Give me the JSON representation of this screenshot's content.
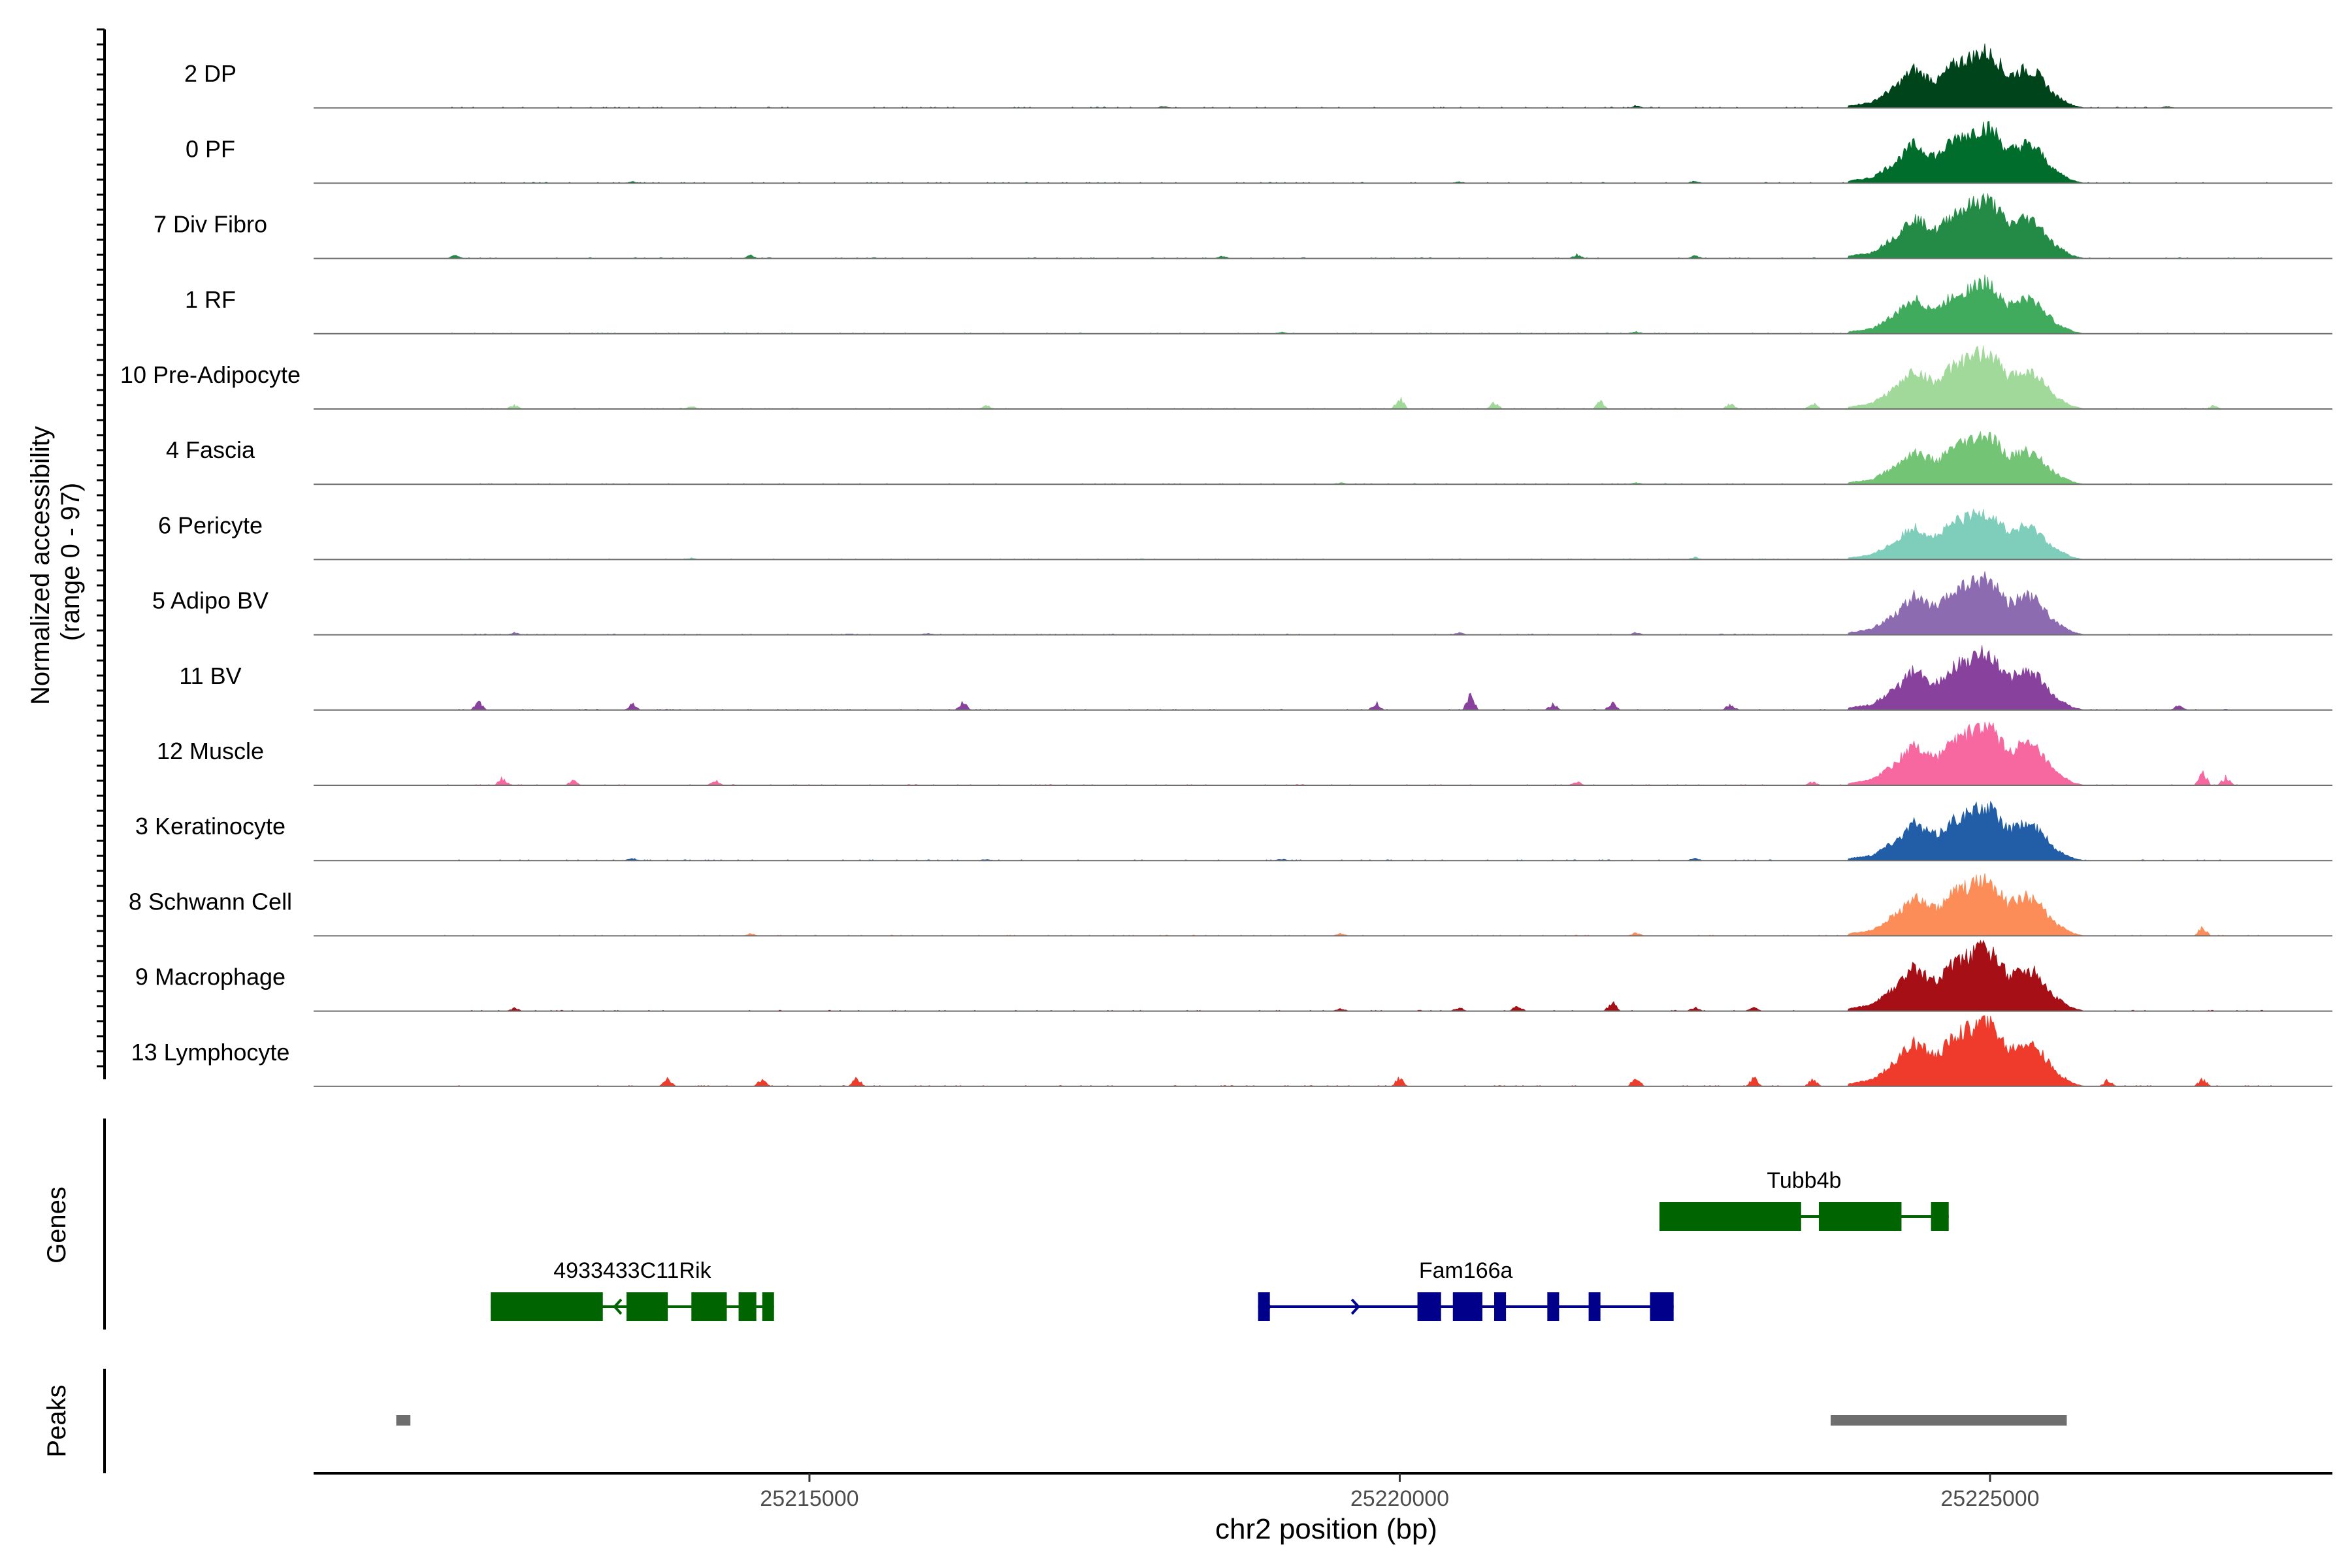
{
  "chart_data": {
    "type": "area",
    "title": "",
    "region": {
      "chrom": "chr2",
      "start": 25210800,
      "end": 25227900
    },
    "track_axis_label": [
      "Normalized accessibility",
      "(range 0 - 97)"
    ],
    "genes_axis_label": "Genes",
    "peaks_axis_label": "Peaks",
    "xlabel": "chr2 position (bp)",
    "xticks": [
      25215000,
      25220000,
      25225000
    ],
    "xtick_labels": [
      "25215000",
      "25220000",
      "25225000"
    ],
    "ylim": [
      0,
      97
    ],
    "tracks": [
      {
        "name": "2 DP",
        "color": "#00441b",
        "peak_scale": 1.0,
        "noise": [
          [
            25211600,
            0.03
          ],
          [
            25218000,
            0.02
          ],
          [
            25222000,
            0.03
          ],
          [
            25226500,
            0.02
          ]
        ]
      },
      {
        "name": "0 PF",
        "color": "#006d2c",
        "peak_scale": 1.0,
        "noise": [
          [
            25211700,
            0.03
          ],
          [
            25213500,
            0.02
          ],
          [
            25220500,
            0.02
          ],
          [
            25222500,
            0.03
          ]
        ]
      },
      {
        "name": "7 Div Fibro",
        "color": "#238b45",
        "peak_scale": 1.05,
        "noise": [
          [
            25212000,
            0.04
          ],
          [
            25214500,
            0.04
          ],
          [
            25218500,
            0.03
          ],
          [
            25221500,
            0.05
          ],
          [
            25222500,
            0.04
          ]
        ]
      },
      {
        "name": "1 RF",
        "color": "#41ab5d",
        "peak_scale": 0.9,
        "noise": [
          [
            25211700,
            0.03
          ],
          [
            25219000,
            0.02
          ],
          [
            25222000,
            0.03
          ]
        ]
      },
      {
        "name": "10 Pre-Adipocyte",
        "color": "#a1d99b",
        "peak_scale": 1.0,
        "noise": [
          [
            25212500,
            0.05
          ],
          [
            25214000,
            0.04
          ],
          [
            25216500,
            0.05
          ],
          [
            25220000,
            0.15
          ],
          [
            25220800,
            0.1
          ],
          [
            25221700,
            0.1
          ],
          [
            25222800,
            0.08
          ],
          [
            25223500,
            0.08
          ],
          [
            25226900,
            0.05
          ]
        ]
      },
      {
        "name": "4 Fascia",
        "color": "#74c476",
        "peak_scale": 0.85,
        "noise": [
          [
            25211600,
            0.02
          ],
          [
            25219500,
            0.02
          ],
          [
            25222000,
            0.02
          ]
        ]
      },
      {
        "name": "6 Pericyte",
        "color": "#7fcdbb",
        "peak_scale": 0.85,
        "noise": [
          [
            25211600,
            0.08
          ],
          [
            25214000,
            0.02
          ],
          [
            25222500,
            0.03
          ]
        ]
      },
      {
        "name": "5 Adipo BV",
        "color": "#8c6bb1",
        "peak_scale": 1.0,
        "noise": [
          [
            25212500,
            0.03
          ],
          [
            25216000,
            0.02
          ],
          [
            25220500,
            0.03
          ],
          [
            25222000,
            0.03
          ]
        ]
      },
      {
        "name": "11 BV",
        "color": "#88419d",
        "peak_scale": 1.0,
        "noise": [
          [
            25212200,
            0.12
          ],
          [
            25213500,
            0.08
          ],
          [
            25216300,
            0.1
          ],
          [
            25219800,
            0.1
          ],
          [
            25220600,
            0.2
          ],
          [
            25221300,
            0.08
          ],
          [
            25221800,
            0.1
          ],
          [
            25222800,
            0.08
          ],
          [
            25226600,
            0.08
          ]
        ]
      },
      {
        "name": "12 Muscle",
        "color": "#f768a1",
        "peak_scale": 1.05,
        "noise": [
          [
            25212400,
            0.1
          ],
          [
            25213000,
            0.07
          ],
          [
            25214200,
            0.07
          ],
          [
            25221500,
            0.05
          ],
          [
            25223500,
            0.05
          ],
          [
            25226800,
            0.18
          ],
          [
            25227000,
            0.12
          ]
        ]
      },
      {
        "name": "3 Keratinocyte",
        "color": "#225ea8",
        "peak_scale": 0.95,
        "noise": [
          [
            25213500,
            0.03
          ],
          [
            25216500,
            0.02
          ],
          [
            25219000,
            0.02
          ],
          [
            25222500,
            0.03
          ]
        ]
      },
      {
        "name": "8 Schwann Cell",
        "color": "#fc8d59",
        "peak_scale": 1.0,
        "noise": [
          [
            25211700,
            0.04
          ],
          [
            25214500,
            0.03
          ],
          [
            25219500,
            0.03
          ],
          [
            25222000,
            0.04
          ],
          [
            25226800,
            0.12
          ]
        ]
      },
      {
        "name": "9 Macrophage",
        "color": "#a50f15",
        "peak_scale": 1.1,
        "noise": [
          [
            25211600,
            0.06
          ],
          [
            25212500,
            0.04
          ],
          [
            25219500,
            0.04
          ],
          [
            25220500,
            0.05
          ],
          [
            25221000,
            0.08
          ],
          [
            25221800,
            0.12
          ],
          [
            25222500,
            0.05
          ],
          [
            25223000,
            0.05
          ]
        ]
      },
      {
        "name": "13 Lymphocyte",
        "color": "#ef3b2c",
        "peak_scale": 1.15,
        "noise": [
          [
            25213800,
            0.1
          ],
          [
            25214600,
            0.1
          ],
          [
            25215400,
            0.12
          ],
          [
            25220000,
            0.12
          ],
          [
            25222000,
            0.12
          ],
          [
            25223000,
            0.12
          ],
          [
            25223500,
            0.1
          ],
          [
            25226000,
            0.1
          ],
          [
            25226800,
            0.1
          ]
        ]
      }
    ],
    "peak_profile": [
      [
        25223800,
        0.03
      ],
      [
        25224000,
        0.08
      ],
      [
        25224200,
        0.3
      ],
      [
        25224350,
        0.55
      ],
      [
        25224450,
        0.45
      ],
      [
        25224550,
        0.38
      ],
      [
        25224700,
        0.62
      ],
      [
        25224850,
        0.72
      ],
      [
        25224950,
        0.8
      ],
      [
        25225050,
        0.7
      ],
      [
        25225150,
        0.45
      ],
      [
        25225300,
        0.55
      ],
      [
        25225400,
        0.48
      ],
      [
        25225550,
        0.18
      ],
      [
        25225700,
        0.04
      ],
      [
        25225800,
        0.0
      ]
    ],
    "genes": [
      {
        "name": "Tubb4b",
        "strand": "+",
        "color": "#006400",
        "start": 25222200,
        "end": 25224650,
        "exons": [
          [
            25222200,
            25223400
          ],
          [
            25223550,
            25224250
          ],
          [
            25224500,
            25224650
          ]
        ]
      },
      {
        "name": "4933433C11Rik",
        "strand": "-",
        "color": "#006400",
        "start": 25212300,
        "end": 25214700,
        "exons": [
          [
            25212300,
            25213250
          ],
          [
            25213450,
            25213800
          ],
          [
            25214000,
            25214300
          ],
          [
            25214400,
            25214550
          ],
          [
            25214600,
            25214700
          ]
        ]
      },
      {
        "name": "Fam166a",
        "strand": "+",
        "color": "#00008b",
        "start": 25218800,
        "end": 25222320,
        "exons": [
          [
            25218800,
            25218900
          ],
          [
            25220150,
            25220350
          ],
          [
            25220450,
            25220700
          ],
          [
            25220800,
            25220900
          ],
          [
            25221250,
            25221350
          ],
          [
            25221600,
            25221700
          ],
          [
            25222120,
            25222320
          ]
        ]
      }
    ],
    "peaks": [
      [
        25211500,
        25211620
      ],
      [
        25223650,
        25225650
      ]
    ]
  }
}
